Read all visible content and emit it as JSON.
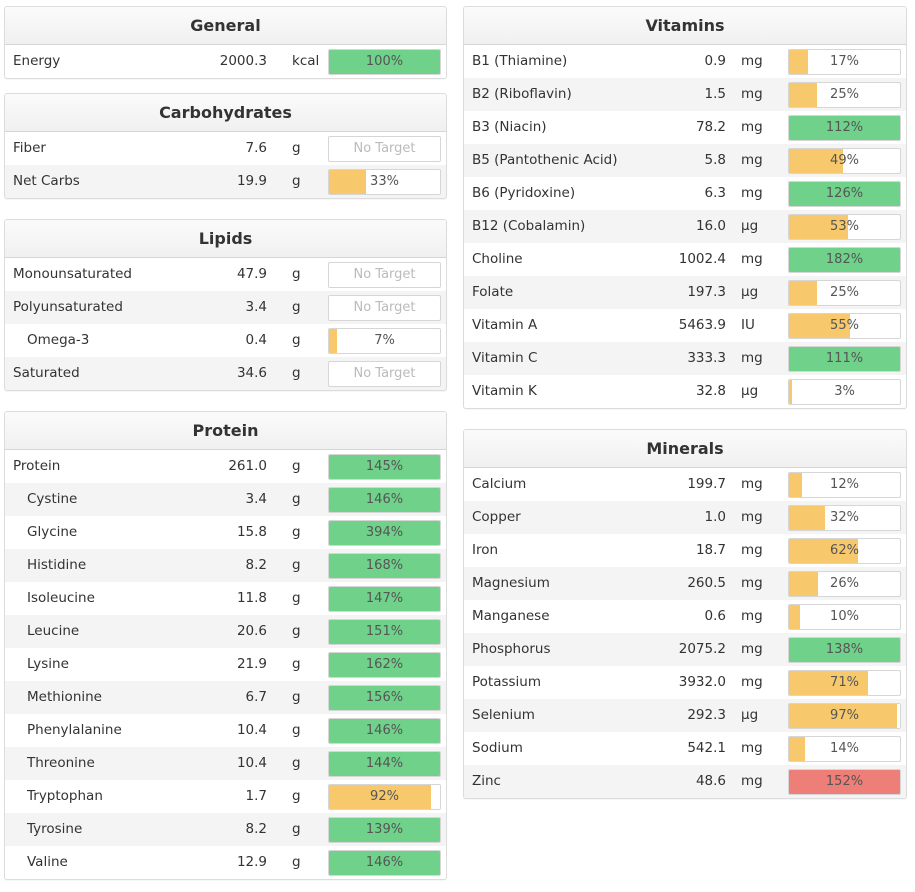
{
  "colors": {
    "green": "#6fd18a",
    "yellow": "#f7c96c",
    "red": "#ee7f78"
  },
  "left": [
    {
      "id": "general",
      "title": "General",
      "rows": [
        {
          "name": "Energy",
          "amount": "2000.3",
          "unit": "kcal",
          "pct_label": "100%",
          "pct": 100,
          "status": "green"
        }
      ]
    },
    {
      "id": "carbohydrates",
      "title": "Carbohydrates",
      "rows": [
        {
          "name": "Fiber",
          "amount": "7.6",
          "unit": "g",
          "pct_label": "No Target",
          "pct": 0,
          "status": "none"
        },
        {
          "name": "Net Carbs",
          "amount": "19.9",
          "unit": "g",
          "pct_label": "33%",
          "pct": 33,
          "status": "yellow"
        }
      ]
    },
    {
      "id": "lipids",
      "title": "Lipids",
      "rows": [
        {
          "name": "Monounsaturated",
          "amount": "47.9",
          "unit": "g",
          "pct_label": "No Target",
          "pct": 0,
          "status": "none"
        },
        {
          "name": "Polyunsaturated",
          "amount": "3.4",
          "unit": "g",
          "pct_label": "No Target",
          "pct": 0,
          "status": "none"
        },
        {
          "name": "Omega-3",
          "amount": "0.4",
          "unit": "g",
          "pct_label": "7%",
          "pct": 7,
          "status": "yellow",
          "indent": true
        },
        {
          "name": "Saturated",
          "amount": "34.6",
          "unit": "g",
          "pct_label": "No Target",
          "pct": 0,
          "status": "none"
        }
      ]
    },
    {
      "id": "protein",
      "title": "Protein",
      "rows": [
        {
          "name": "Protein",
          "amount": "261.0",
          "unit": "g",
          "pct_label": "145%",
          "pct": 145,
          "status": "green"
        },
        {
          "name": "Cystine",
          "amount": "3.4",
          "unit": "g",
          "pct_label": "146%",
          "pct": 146,
          "status": "green",
          "indent": true
        },
        {
          "name": "Glycine",
          "amount": "15.8",
          "unit": "g",
          "pct_label": "394%",
          "pct": 394,
          "status": "green",
          "indent": true
        },
        {
          "name": "Histidine",
          "amount": "8.2",
          "unit": "g",
          "pct_label": "168%",
          "pct": 168,
          "status": "green",
          "indent": true
        },
        {
          "name": "Isoleucine",
          "amount": "11.8",
          "unit": "g",
          "pct_label": "147%",
          "pct": 147,
          "status": "green",
          "indent": true
        },
        {
          "name": "Leucine",
          "amount": "20.6",
          "unit": "g",
          "pct_label": "151%",
          "pct": 151,
          "status": "green",
          "indent": true
        },
        {
          "name": "Lysine",
          "amount": "21.9",
          "unit": "g",
          "pct_label": "162%",
          "pct": 162,
          "status": "green",
          "indent": true
        },
        {
          "name": "Methionine",
          "amount": "6.7",
          "unit": "g",
          "pct_label": "156%",
          "pct": 156,
          "status": "green",
          "indent": true
        },
        {
          "name": "Phenylalanine",
          "amount": "10.4",
          "unit": "g",
          "pct_label": "146%",
          "pct": 146,
          "status": "green",
          "indent": true
        },
        {
          "name": "Threonine",
          "amount": "10.4",
          "unit": "g",
          "pct_label": "144%",
          "pct": 144,
          "status": "green",
          "indent": true
        },
        {
          "name": "Tryptophan",
          "amount": "1.7",
          "unit": "g",
          "pct_label": "92%",
          "pct": 92,
          "status": "yellow",
          "indent": true
        },
        {
          "name": "Tyrosine",
          "amount": "8.2",
          "unit": "g",
          "pct_label": "139%",
          "pct": 139,
          "status": "green",
          "indent": true
        },
        {
          "name": "Valine",
          "amount": "12.9",
          "unit": "g",
          "pct_label": "146%",
          "pct": 146,
          "status": "green",
          "indent": true
        }
      ]
    }
  ],
  "right": [
    {
      "id": "vitamins",
      "title": "Vitamins",
      "rows": [
        {
          "name": "B1 (Thiamine)",
          "amount": "0.9",
          "unit": "mg",
          "pct_label": "17%",
          "pct": 17,
          "status": "yellow"
        },
        {
          "name": "B2 (Riboflavin)",
          "amount": "1.5",
          "unit": "mg",
          "pct_label": "25%",
          "pct": 25,
          "status": "yellow"
        },
        {
          "name": "B3 (Niacin)",
          "amount": "78.2",
          "unit": "mg",
          "pct_label": "112%",
          "pct": 112,
          "status": "green"
        },
        {
          "name": "B5 (Pantothenic Acid)",
          "amount": "5.8",
          "unit": "mg",
          "pct_label": "49%",
          "pct": 49,
          "status": "yellow"
        },
        {
          "name": "B6 (Pyridoxine)",
          "amount": "6.3",
          "unit": "mg",
          "pct_label": "126%",
          "pct": 126,
          "status": "green"
        },
        {
          "name": "B12 (Cobalamin)",
          "amount": "16.0",
          "unit": "µg",
          "pct_label": "53%",
          "pct": 53,
          "status": "yellow"
        },
        {
          "name": "Choline",
          "amount": "1002.4",
          "unit": "mg",
          "pct_label": "182%",
          "pct": 182,
          "status": "green"
        },
        {
          "name": "Folate",
          "amount": "197.3",
          "unit": "µg",
          "pct_label": "25%",
          "pct": 25,
          "status": "yellow"
        },
        {
          "name": "Vitamin A",
          "amount": "5463.9",
          "unit": "IU",
          "pct_label": "55%",
          "pct": 55,
          "status": "yellow"
        },
        {
          "name": "Vitamin C",
          "amount": "333.3",
          "unit": "mg",
          "pct_label": "111%",
          "pct": 111,
          "status": "green"
        },
        {
          "name": "Vitamin K",
          "amount": "32.8",
          "unit": "µg",
          "pct_label": "3%",
          "pct": 3,
          "status": "yellow"
        }
      ]
    },
    {
      "id": "minerals",
      "title": "Minerals",
      "rows": [
        {
          "name": "Calcium",
          "amount": "199.7",
          "unit": "mg",
          "pct_label": "12%",
          "pct": 12,
          "status": "yellow"
        },
        {
          "name": "Copper",
          "amount": "1.0",
          "unit": "mg",
          "pct_label": "32%",
          "pct": 32,
          "status": "yellow"
        },
        {
          "name": "Iron",
          "amount": "18.7",
          "unit": "mg",
          "pct_label": "62%",
          "pct": 62,
          "status": "yellow"
        },
        {
          "name": "Magnesium",
          "amount": "260.5",
          "unit": "mg",
          "pct_label": "26%",
          "pct": 26,
          "status": "yellow"
        },
        {
          "name": "Manganese",
          "amount": "0.6",
          "unit": "mg",
          "pct_label": "10%",
          "pct": 10,
          "status": "yellow"
        },
        {
          "name": "Phosphorus",
          "amount": "2075.2",
          "unit": "mg",
          "pct_label": "138%",
          "pct": 138,
          "status": "green"
        },
        {
          "name": "Potassium",
          "amount": "3932.0",
          "unit": "mg",
          "pct_label": "71%",
          "pct": 71,
          "status": "yellow"
        },
        {
          "name": "Selenium",
          "amount": "292.3",
          "unit": "µg",
          "pct_label": "97%",
          "pct": 97,
          "status": "yellow"
        },
        {
          "name": "Sodium",
          "amount": "542.1",
          "unit": "mg",
          "pct_label": "14%",
          "pct": 14,
          "status": "yellow"
        },
        {
          "name": "Zinc",
          "amount": "48.6",
          "unit": "mg",
          "pct_label": "152%",
          "pct": 152,
          "status": "red"
        }
      ]
    }
  ]
}
